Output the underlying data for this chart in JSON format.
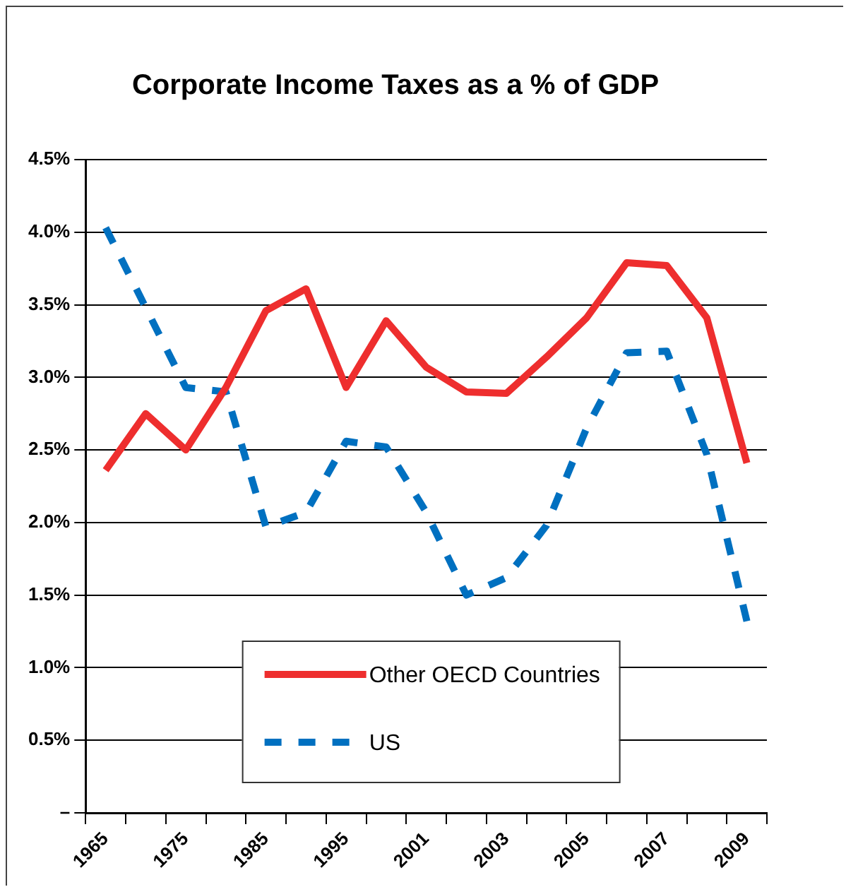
{
  "chart_data": {
    "type": "line",
    "title": "Corporate Income Taxes as a % of GDP",
    "categories": [
      "1965",
      null,
      "1975",
      null,
      "1985",
      null,
      "1995",
      null,
      "2001",
      null,
      "2003",
      null,
      "2005",
      null,
      "2007",
      null,
      "2009"
    ],
    "series": [
      {
        "name": "Other OECD Countries",
        "color": "#ee2e2e",
        "line_style": "solid",
        "values": [
          2.36,
          2.75,
          2.5,
          2.93,
          3.46,
          3.61,
          2.93,
          3.39,
          3.07,
          2.9,
          2.89,
          3.14,
          3.41,
          3.79,
          3.77,
          3.41,
          2.41
        ]
      },
      {
        "name": "US",
        "color": "#0070c0",
        "line_style": "dashed",
        "values": [
          4.03,
          3.48,
          2.93,
          2.9,
          1.97,
          2.07,
          2.56,
          2.52,
          2.07,
          1.5,
          1.62,
          1.98,
          2.65,
          3.17,
          3.18,
          2.47,
          1.32
        ]
      }
    ],
    "ylim": [
      0,
      4.5
    ],
    "yticks": [
      {
        "value": 0,
        "label": "–"
      },
      {
        "value": 0.5,
        "label": "0.5%"
      },
      {
        "value": 1,
        "label": "1.0%"
      },
      {
        "value": 1.5,
        "label": "1.5%"
      },
      {
        "value": 2,
        "label": "2.0%"
      },
      {
        "value": 2.5,
        "label": "2.5%"
      },
      {
        "value": 3,
        "label": "3.0%"
      },
      {
        "value": 3.5,
        "label": "3.5%"
      },
      {
        "value": 4,
        "label": "4.0%"
      },
      {
        "value": 4.5,
        "label": "4.5%"
      }
    ],
    "grid": "y",
    "legend": "bottom",
    "marker": "none"
  }
}
